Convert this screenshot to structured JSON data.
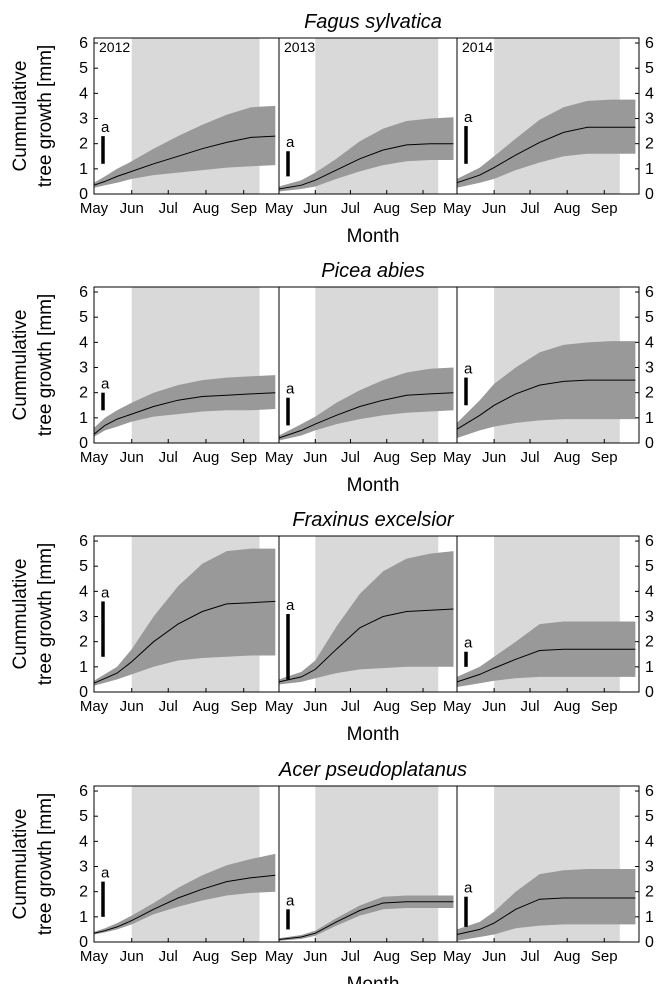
{
  "figure": {
    "ylabel_line1": "Cummulative",
    "ylabel_line2": "tree growth [mm]",
    "xlabel": "Month",
    "year_labels": [
      "2012",
      "2013",
      "2014"
    ],
    "month_ticks": [
      "May",
      "Jun",
      "Jul",
      "Aug",
      "Sep"
    ],
    "y_ticks": [
      "0",
      "1",
      "2",
      "3",
      "4",
      "5",
      "6"
    ],
    "bar_label": "a",
    "colors": {
      "growing_season": "#d9d9d9",
      "band": "#999999",
      "mean_line": "#000000",
      "bar": "#000000",
      "frame": "#000000"
    }
  },
  "chart_data": [
    {
      "type": "area",
      "title": "Fagus sylvatica",
      "xlabel": "Month",
      "ylabel": "Cummulative tree growth [mm]",
      "x_range_doy": [
        121,
        273
      ],
      "ylim": [
        0,
        6.2
      ],
      "growing_season_doy": [
        152,
        257
      ],
      "panels": [
        {
          "year": "2012",
          "bar": [
            1.2,
            2.3
          ],
          "x_doy": [
            121,
            130,
            140,
            152,
            170,
            190,
            210,
            230,
            250,
            270
          ],
          "mean": [
            0.35,
            0.5,
            0.7,
            0.9,
            1.2,
            1.5,
            1.8,
            2.05,
            2.25,
            2.3
          ],
          "lower": [
            0.25,
            0.35,
            0.45,
            0.6,
            0.75,
            0.85,
            0.95,
            1.05,
            1.1,
            1.15
          ],
          "upper": [
            0.45,
            0.7,
            1.0,
            1.3,
            1.8,
            2.3,
            2.75,
            3.15,
            3.45,
            3.5
          ]
        },
        {
          "year": "2013",
          "bar": [
            0.7,
            1.7
          ],
          "x_doy": [
            121,
            140,
            152,
            170,
            190,
            210,
            230,
            250,
            270
          ],
          "mean": [
            0.2,
            0.35,
            0.55,
            0.95,
            1.4,
            1.75,
            1.95,
            2.0,
            2.0
          ],
          "lower": [
            0.1,
            0.2,
            0.3,
            0.6,
            0.9,
            1.15,
            1.3,
            1.35,
            1.35
          ],
          "upper": [
            0.3,
            0.55,
            0.85,
            1.4,
            2.1,
            2.6,
            2.9,
            3.0,
            3.05
          ]
        },
        {
          "year": "2014",
          "bar": [
            1.2,
            2.7
          ],
          "x_doy": [
            121,
            140,
            152,
            170,
            190,
            210,
            230,
            250,
            270
          ],
          "mean": [
            0.45,
            0.75,
            1.05,
            1.55,
            2.05,
            2.45,
            2.65,
            2.65,
            2.65
          ],
          "lower": [
            0.25,
            0.45,
            0.6,
            0.95,
            1.25,
            1.5,
            1.6,
            1.6,
            1.6
          ],
          "upper": [
            0.6,
            1.05,
            1.5,
            2.2,
            2.95,
            3.45,
            3.7,
            3.75,
            3.75
          ]
        }
      ]
    },
    {
      "type": "area",
      "title": "Picea abies",
      "xlabel": "Month",
      "ylabel": "Cummulative tree growth [mm]",
      "x_range_doy": [
        121,
        273
      ],
      "ylim": [
        0,
        6.2
      ],
      "growing_season_doy": [
        152,
        257
      ],
      "panels": [
        {
          "year": "2012",
          "bar": [
            1.3,
            2.0
          ],
          "x_doy": [
            121,
            130,
            140,
            152,
            170,
            190,
            210,
            230,
            250,
            270
          ],
          "mean": [
            0.35,
            0.7,
            0.95,
            1.15,
            1.45,
            1.7,
            1.85,
            1.9,
            1.95,
            2.0
          ],
          "lower": [
            0.25,
            0.5,
            0.65,
            0.85,
            1.05,
            1.15,
            1.25,
            1.3,
            1.3,
            1.35
          ],
          "upper": [
            0.6,
            1.0,
            1.3,
            1.6,
            2.0,
            2.3,
            2.5,
            2.6,
            2.65,
            2.7
          ]
        },
        {
          "year": "2013",
          "bar": [
            0.7,
            1.8
          ],
          "x_doy": [
            121,
            140,
            152,
            170,
            190,
            210,
            230,
            250,
            270
          ],
          "mean": [
            0.2,
            0.5,
            0.75,
            1.1,
            1.45,
            1.7,
            1.9,
            1.95,
            2.0
          ],
          "lower": [
            0.1,
            0.3,
            0.5,
            0.75,
            0.95,
            1.1,
            1.2,
            1.25,
            1.3
          ],
          "upper": [
            0.3,
            0.75,
            1.05,
            1.6,
            2.1,
            2.5,
            2.8,
            2.95,
            3.0
          ]
        },
        {
          "year": "2014",
          "bar": [
            1.5,
            2.6
          ],
          "x_doy": [
            121,
            140,
            152,
            170,
            190,
            210,
            230,
            250,
            270
          ],
          "mean": [
            0.55,
            1.1,
            1.5,
            1.95,
            2.3,
            2.45,
            2.5,
            2.5,
            2.5
          ],
          "lower": [
            0.2,
            0.5,
            0.65,
            0.8,
            0.9,
            0.95,
            0.95,
            0.95,
            0.95
          ],
          "upper": [
            0.8,
            1.7,
            2.35,
            3.0,
            3.6,
            3.9,
            4.0,
            4.05,
            4.05
          ]
        }
      ]
    },
    {
      "type": "area",
      "title": "Fraxinus excelsior",
      "xlabel": "Month",
      "ylabel": "Cummulative tree growth [mm]",
      "x_range_doy": [
        121,
        273
      ],
      "ylim": [
        0,
        6.2
      ],
      "growing_season_doy": [
        152,
        257
      ],
      "panels": [
        {
          "year": "2012",
          "bar": [
            1.4,
            3.6
          ],
          "x_doy": [
            121,
            140,
            152,
            170,
            190,
            210,
            230,
            250,
            270
          ],
          "mean": [
            0.35,
            0.75,
            1.2,
            2.0,
            2.7,
            3.2,
            3.5,
            3.55,
            3.6
          ],
          "lower": [
            0.25,
            0.5,
            0.7,
            1.0,
            1.25,
            1.35,
            1.4,
            1.45,
            1.45
          ],
          "upper": [
            0.45,
            1.0,
            1.7,
            3.0,
            4.2,
            5.1,
            5.6,
            5.7,
            5.7
          ]
        },
        {
          "year": "2013",
          "bar": [
            0.5,
            3.1
          ],
          "x_doy": [
            121,
            140,
            152,
            170,
            190,
            210,
            230,
            250,
            270
          ],
          "mean": [
            0.4,
            0.6,
            0.9,
            1.7,
            2.55,
            3.0,
            3.2,
            3.25,
            3.3
          ],
          "lower": [
            0.3,
            0.4,
            0.55,
            0.75,
            0.9,
            0.95,
            1.0,
            1.0,
            1.0
          ],
          "upper": [
            0.5,
            0.8,
            1.25,
            2.6,
            3.9,
            4.8,
            5.3,
            5.5,
            5.6
          ]
        },
        {
          "year": "2014",
          "bar": [
            1.0,
            1.6
          ],
          "x_doy": [
            121,
            140,
            152,
            170,
            190,
            210,
            230,
            250,
            270
          ],
          "mean": [
            0.4,
            0.7,
            0.95,
            1.3,
            1.65,
            1.7,
            1.7,
            1.7,
            1.7
          ],
          "lower": [
            0.2,
            0.35,
            0.45,
            0.55,
            0.6,
            0.6,
            0.6,
            0.6,
            0.6
          ],
          "upper": [
            0.6,
            1.0,
            1.4,
            2.0,
            2.7,
            2.8,
            2.8,
            2.8,
            2.8
          ]
        }
      ]
    },
    {
      "type": "area",
      "title": "Acer pseudoplatanus",
      "xlabel": "Month",
      "ylabel": "Cummulative tree growth [mm]",
      "x_range_doy": [
        121,
        273
      ],
      "ylim": [
        0,
        6.2
      ],
      "growing_season_doy": [
        152,
        257
      ],
      "panels": [
        {
          "year": "2012",
          "bar": [
            1.0,
            2.4
          ],
          "x_doy": [
            121,
            130,
            140,
            152,
            170,
            190,
            210,
            230,
            250,
            270
          ],
          "mean": [
            0.35,
            0.45,
            0.6,
            0.85,
            1.3,
            1.75,
            2.1,
            2.4,
            2.55,
            2.65
          ],
          "lower": [
            0.3,
            0.38,
            0.5,
            0.7,
            1.1,
            1.4,
            1.65,
            1.85,
            1.95,
            2.0
          ],
          "upper": [
            0.4,
            0.55,
            0.75,
            1.05,
            1.55,
            2.15,
            2.65,
            3.05,
            3.3,
            3.5
          ]
        },
        {
          "year": "2013",
          "bar": [
            0.5,
            1.3
          ],
          "x_doy": [
            121,
            140,
            152,
            170,
            190,
            210,
            230,
            250,
            270
          ],
          "mean": [
            0.1,
            0.2,
            0.35,
            0.8,
            1.25,
            1.55,
            1.6,
            1.6,
            1.6
          ],
          "lower": [
            0.05,
            0.12,
            0.25,
            0.65,
            1.05,
            1.3,
            1.35,
            1.35,
            1.35
          ],
          "upper": [
            0.15,
            0.28,
            0.45,
            0.95,
            1.45,
            1.8,
            1.85,
            1.85,
            1.85
          ]
        },
        {
          "year": "2014",
          "bar": [
            0.6,
            1.8
          ],
          "x_doy": [
            121,
            140,
            152,
            170,
            190,
            210,
            230,
            250,
            270
          ],
          "mean": [
            0.3,
            0.5,
            0.75,
            1.3,
            1.7,
            1.75,
            1.75,
            1.75,
            1.75
          ],
          "lower": [
            0.05,
            0.2,
            0.3,
            0.55,
            0.65,
            0.7,
            0.7,
            0.7,
            0.7
          ],
          "upper": [
            0.5,
            0.8,
            1.2,
            2.0,
            2.7,
            2.85,
            2.9,
            2.9,
            2.9
          ]
        }
      ]
    }
  ]
}
